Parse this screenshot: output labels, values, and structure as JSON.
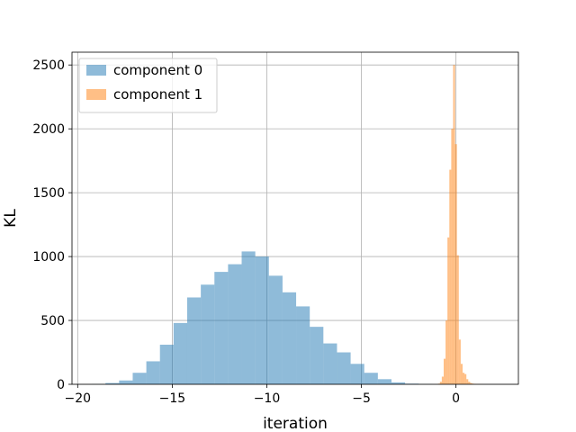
{
  "chart_data": {
    "type": "bar",
    "histogram": true,
    "title": "",
    "xlabel": "iteration",
    "ylabel": "KL",
    "xlim": [
      -20.3,
      3.3
    ],
    "ylim": [
      0,
      2600
    ],
    "xticks": [
      -20,
      -15,
      -10,
      -5,
      0
    ],
    "xtick_labels": [
      "−20",
      "−15",
      "−10",
      "−5",
      "0"
    ],
    "yticks": [
      0,
      500,
      1000,
      1500,
      2000,
      2500
    ],
    "ytick_labels": [
      "0",
      "500",
      "1000",
      "1500",
      "2000",
      "2500"
    ],
    "grid": true,
    "legend_position": "top-left",
    "series": [
      {
        "name": "component 0",
        "color": "#1f77b4",
        "alpha": 0.5,
        "bin_edges": [
          -19.25,
          -18.53,
          -17.81,
          -17.09,
          -16.37,
          -15.65,
          -14.93,
          -14.21,
          -13.49,
          -12.77,
          -12.05,
          -11.33,
          -10.61,
          -9.89,
          -9.17,
          -8.45,
          -7.73,
          -7.01,
          -6.29,
          -5.57,
          -4.85,
          -4.13,
          -3.41,
          -2.69,
          -1.97,
          -1.25
        ],
        "counts": [
          2,
          10,
          30,
          90,
          180,
          310,
          480,
          680,
          780,
          880,
          940,
          1040,
          1000,
          850,
          720,
          610,
          450,
          320,
          250,
          160,
          90,
          40,
          15,
          5,
          2
        ]
      },
      {
        "name": "component 1",
        "color": "#ff7f0e",
        "alpha": 0.5,
        "bin_edges": [
          -0.95,
          -0.85,
          -0.75,
          -0.65,
          -0.55,
          -0.45,
          -0.35,
          -0.25,
          -0.15,
          -0.05,
          0.05,
          0.15,
          0.25,
          0.35,
          0.45,
          0.55,
          0.65,
          0.75,
          0.85,
          0.95,
          1.05,
          1.15,
          1.25,
          1.35,
          1.45
        ],
        "counts": [
          5,
          20,
          60,
          200,
          500,
          1150,
          1680,
          2000,
          2500,
          1880,
          1010,
          350,
          160,
          90,
          80,
          40,
          20,
          10,
          5,
          3,
          2,
          1,
          1,
          1
        ]
      }
    ]
  }
}
